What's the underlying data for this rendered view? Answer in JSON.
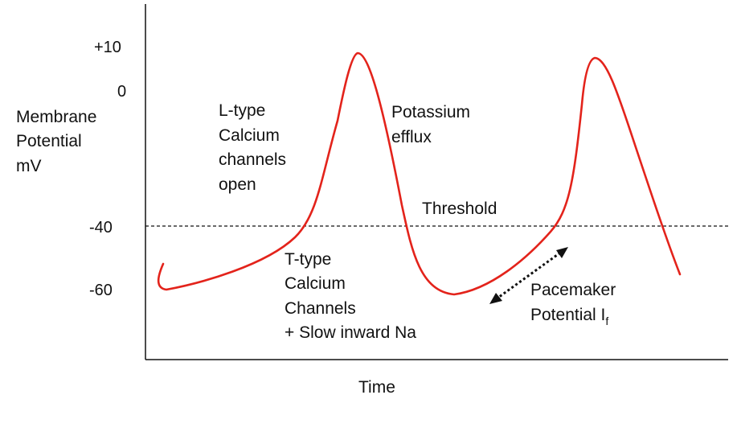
{
  "chart_data": {
    "type": "line",
    "title": "",
    "ylabel_lines": [
      "Membrane",
      "Potential",
      "mV"
    ],
    "xlabel": "Time",
    "y_ticks": [
      "+10",
      "0",
      "-40",
      "-60"
    ],
    "threshold_label": "Threshold",
    "threshold_value": -40,
    "annotations": {
      "l_type": [
        "L-type",
        "Calcium",
        "channels",
        "open"
      ],
      "potassium": [
        "Potassium",
        "efflux"
      ],
      "t_type": [
        "T-type",
        "Calcium",
        "Channels",
        "+ Slow inward Na"
      ],
      "pacemaker_line1": "Pacemaker",
      "pacemaker_line2": "Potential I",
      "pacemaker_subscript": "f"
    },
    "colors": {
      "trace": "#e3231b",
      "axis": "#111111"
    },
    "grid": false,
    "legend": "none"
  }
}
